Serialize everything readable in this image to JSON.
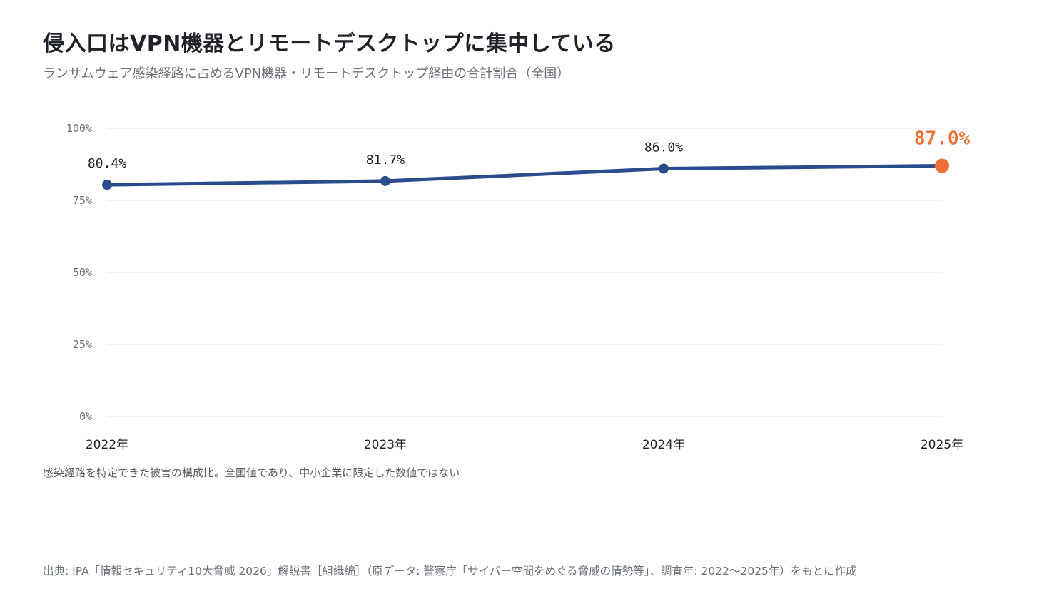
{
  "title": "侵入口はVPN機器とリモートデスクトップに集中している",
  "subtitle": "ランサムウェア感染経路に占めるVPN機器・リモートデスクトップ経由の合計割合（全国）",
  "note": "感染経路を特定できた被害の構成比。全国値であり、中小企業に限定した数値ではない",
  "source": "出典: IPA「情報セキュリティ10大脅威 2026」解説書［組織編］（原データ: 警察庁「サイバー空間をめぐる脅威の情勢等」、調査年: 2022〜2025年）をもとに作成",
  "colors": {
    "line": "#2b4c8c",
    "highlight": "#ee6e35",
    "grid": "#e4e6e9"
  },
  "chart_data": {
    "type": "line",
    "categories": [
      "2022年",
      "2023年",
      "2024年",
      "2025年"
    ],
    "values": [
      80.4,
      81.7,
      86.0,
      87.0
    ],
    "data_labels": [
      "80.4%",
      "81.7%",
      "86.0%",
      "87.0%"
    ],
    "highlight_index": 3,
    "ylim": [
      0,
      100
    ],
    "yticks": [
      0,
      25,
      50,
      75,
      100
    ],
    "ytick_labels": [
      "0%",
      "25%",
      "50%",
      "75%",
      "100%"
    ],
    "grid": true,
    "legend": "none"
  }
}
